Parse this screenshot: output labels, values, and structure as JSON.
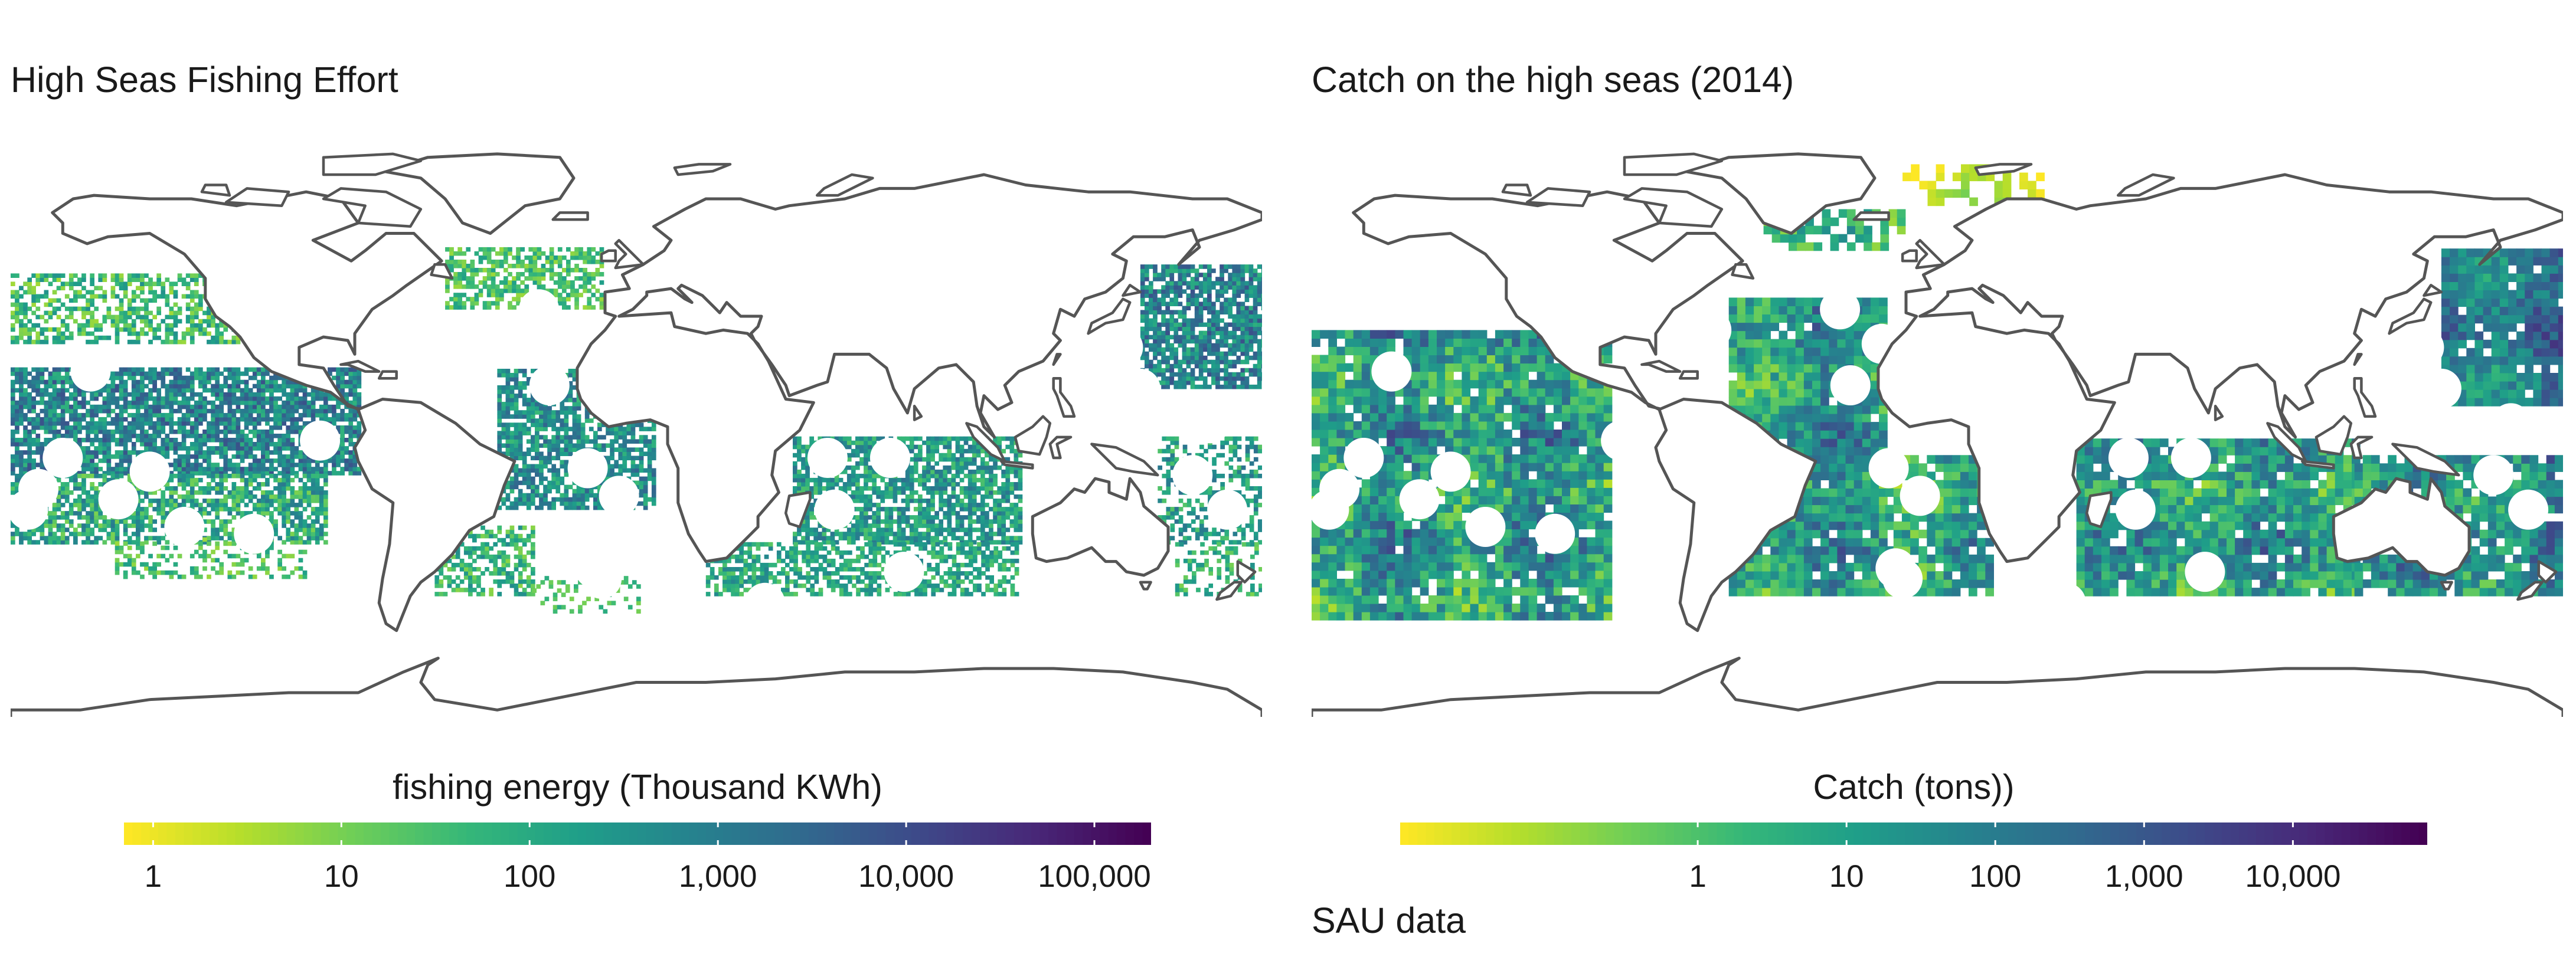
{
  "colors": {
    "background": "#ffffff",
    "coastline": "#555555",
    "viridis": [
      "#fde725",
      "#b5de2b",
      "#6ece58",
      "#35b779",
      "#1f9e89",
      "#26828e",
      "#31688e",
      "#3e4989",
      "#482878",
      "#440154"
    ]
  },
  "panels": [
    {
      "title": "High Seas Fishing Effort",
      "legend": {
        "title": "fishing energy (Thousand KWh)",
        "scale": "log10",
        "domain": [
          0.7,
          200000
        ],
        "ticks": [
          {
            "value": 1,
            "label": "1"
          },
          {
            "value": 10,
            "label": "10"
          },
          {
            "value": 100,
            "label": "100"
          },
          {
            "value": 1000,
            "label": "1,000"
          },
          {
            "value": 10000,
            "label": "10,000"
          },
          {
            "value": 100000,
            "label": "100,000"
          }
        ]
      }
    },
    {
      "title": "Catch on the high seas (2014)",
      "legend": {
        "title": "Catch (tons))",
        "scale": "log10",
        "domain": [
          0.01,
          80000
        ],
        "ticks": [
          {
            "value": 1,
            "label": "1"
          },
          {
            "value": 10,
            "label": "10"
          },
          {
            "value": 100,
            "label": "100"
          },
          {
            "value": 1000,
            "label": "1,000"
          },
          {
            "value": 10000,
            "label": "10,000"
          }
        ]
      }
    }
  ],
  "caption": "SAU data"
}
